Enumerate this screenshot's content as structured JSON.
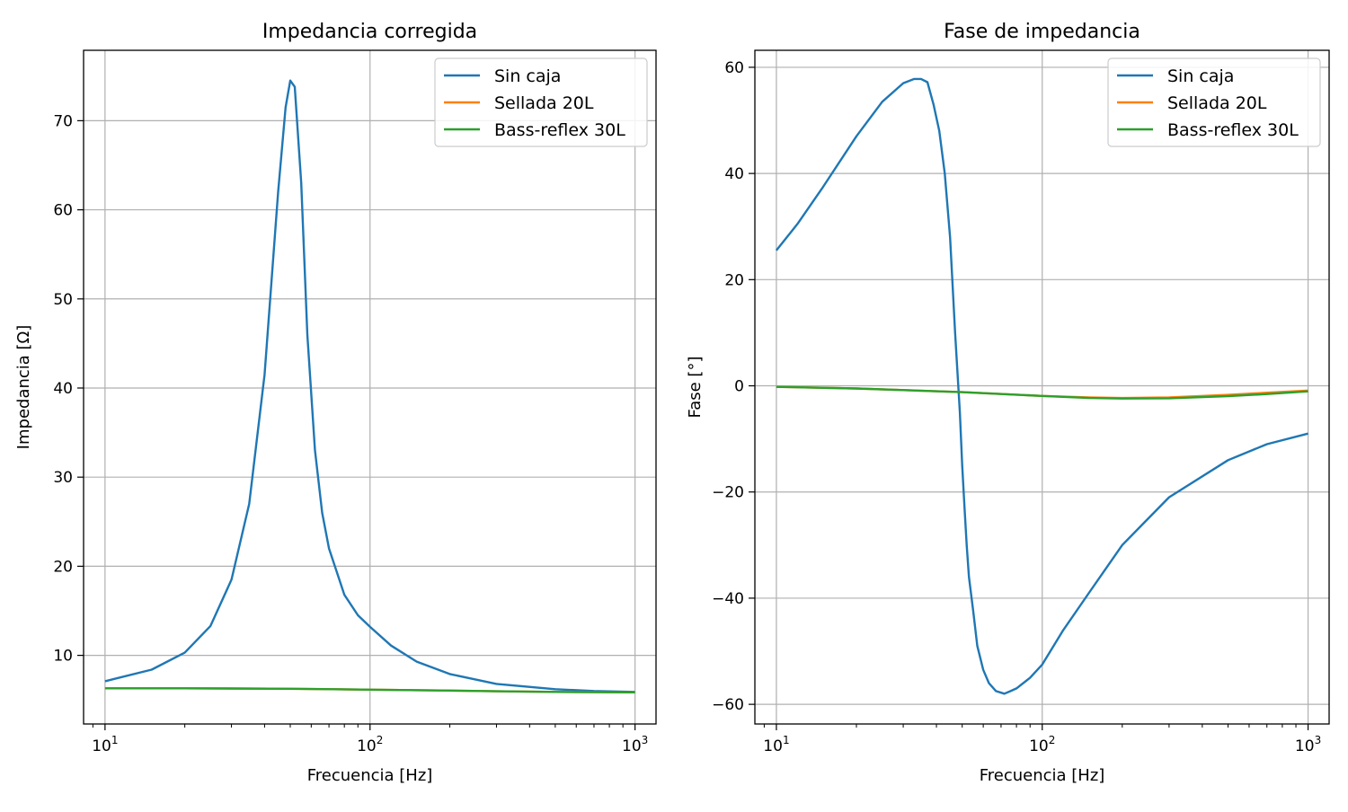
{
  "chart_data": [
    {
      "type": "line",
      "title": "Impedancia corregida",
      "xlabel": "Frecuencia [Hz]",
      "ylabel": "Impedancia [Ω]",
      "xscale": "log",
      "xlim": [
        8.3,
        1200
      ],
      "ylim": [
        2.3,
        77.9
      ],
      "xticks": [
        10,
        100,
        1000
      ],
      "xtick_labels": [
        {
          "base": "10",
          "exp": "1"
        },
        {
          "base": "10",
          "exp": "2"
        },
        {
          "base": "10",
          "exp": "3"
        }
      ],
      "yticks": [
        10,
        20,
        30,
        40,
        50,
        60,
        70
      ],
      "ytick_labels": [
        "10",
        "20",
        "30",
        "40",
        "50",
        "60",
        "70"
      ],
      "grid": true,
      "legend": "top-right",
      "series": [
        {
          "name": "Sin caja",
          "color": "#1f77b4",
          "x": [
            10,
            15,
            20,
            25,
            30,
            35,
            40,
            45,
            48,
            50,
            52,
            55,
            58,
            62,
            66,
            70,
            80,
            90,
            100,
            120,
            150,
            200,
            300,
            500,
            700,
            1000
          ],
          "y": [
            7.1,
            8.4,
            10.3,
            13.3,
            18.5,
            27,
            41.5,
            62,
            71.5,
            74.5,
            73.8,
            63,
            46,
            33,
            26,
            22,
            16.8,
            14.5,
            13.2,
            11.1,
            9.3,
            7.9,
            6.8,
            6.2,
            6.0,
            5.9
          ]
        },
        {
          "name": "Sellada 20L",
          "color": "#ff7f0e",
          "x": [
            10,
            20,
            50,
            100,
            200,
            300,
            500,
            700,
            1000
          ],
          "y": [
            6.3,
            6.3,
            6.25,
            6.15,
            6.05,
            5.97,
            5.9,
            5.87,
            5.85
          ]
        },
        {
          "name": "Bass-reflex 30L",
          "color": "#2ca02c",
          "x": [
            10,
            20,
            50,
            100,
            200,
            300,
            500,
            700,
            1000
          ],
          "y": [
            6.3,
            6.3,
            6.25,
            6.15,
            6.05,
            5.97,
            5.9,
            5.87,
            5.85
          ]
        }
      ]
    },
    {
      "type": "line",
      "title": "Fase de impedancia",
      "xlabel": "Frecuencia [Hz]",
      "ylabel": "Fase [°]",
      "xscale": "log",
      "xlim": [
        8.3,
        1200
      ],
      "ylim": [
        -63.7,
        63.2
      ],
      "xticks": [
        10,
        100,
        1000
      ],
      "xtick_labels": [
        {
          "base": "10",
          "exp": "1"
        },
        {
          "base": "10",
          "exp": "2"
        },
        {
          "base": "10",
          "exp": "3"
        }
      ],
      "yticks": [
        -60,
        -40,
        -20,
        0,
        20,
        40,
        60
      ],
      "ytick_labels": [
        "−60",
        "−40",
        "−20",
        "0",
        "20",
        "40",
        "60"
      ],
      "grid": true,
      "legend": "top-right",
      "series": [
        {
          "name": "Sin caja",
          "color": "#1f77b4",
          "x": [
            10,
            12,
            15,
            20,
            25,
            30,
            33,
            35,
            37,
            39,
            41,
            43,
            45,
            47,
            49,
            50,
            51,
            52,
            53,
            55,
            57,
            60,
            63,
            67,
            72,
            76,
            80,
            90,
            100,
            120,
            150,
            200,
            300,
            500,
            700,
            1000
          ],
          "y": [
            25.5,
            30.5,
            37.5,
            47,
            53.5,
            57,
            57.8,
            57.8,
            57.2,
            53,
            48,
            40,
            28,
            10,
            -5,
            -15,
            -23,
            -30,
            -36,
            -42.5,
            -49,
            -53.5,
            -56,
            -57.5,
            -58,
            -57.5,
            -57,
            -55,
            -52.5,
            -46,
            -39,
            -30,
            -21,
            -14,
            -11,
            -9
          ]
        },
        {
          "name": "Sellada 20L",
          "color": "#ff7f0e",
          "x": [
            10,
            20,
            50,
            100,
            150,
            200,
            300,
            500,
            700,
            1000
          ],
          "y": [
            -0.2,
            -0.5,
            -1.2,
            -1.9,
            -2.2,
            -2.3,
            -2.2,
            -1.7,
            -1.3,
            -0.9
          ]
        },
        {
          "name": "Bass-reflex 30L",
          "color": "#2ca02c",
          "x": [
            10,
            20,
            50,
            100,
            150,
            200,
            300,
            500,
            700,
            1000
          ],
          "y": [
            -0.2,
            -0.5,
            -1.2,
            -1.9,
            -2.3,
            -2.4,
            -2.35,
            -1.95,
            -1.55,
            -1.05
          ]
        }
      ]
    }
  ]
}
